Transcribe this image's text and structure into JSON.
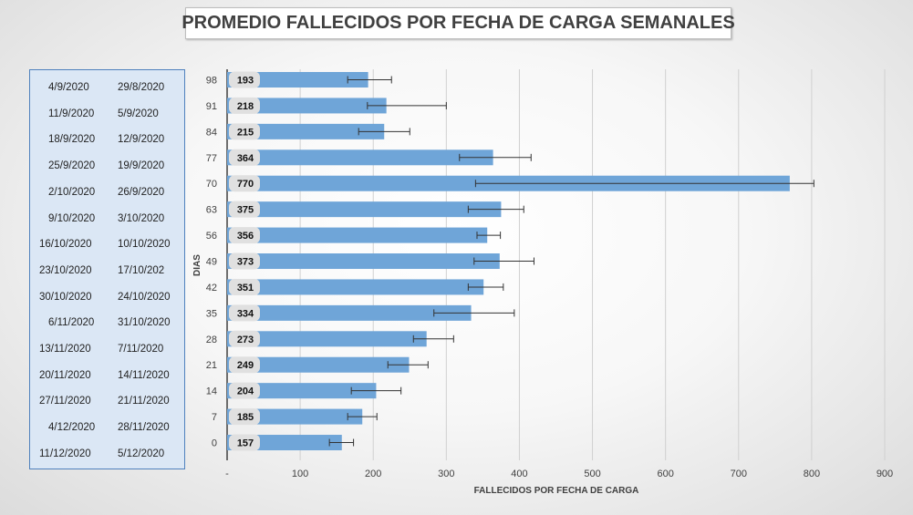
{
  "title": "PROMEDIO FALLECIDOS POR FECHA DE CARGA SEMANALES",
  "date_pairs": [
    [
      "4/9/2020",
      "29/8/2020"
    ],
    [
      "11/9/2020",
      "5/9/2020"
    ],
    [
      "18/9/2020",
      "12/9/2020"
    ],
    [
      "25/9/2020",
      "19/9/2020"
    ],
    [
      "2/10/2020",
      "26/9/2020"
    ],
    [
      "9/10/2020",
      "3/10/2020"
    ],
    [
      "16/10/2020",
      "10/10/2020"
    ],
    [
      "23/10/2020",
      "17/10/202"
    ],
    [
      "30/10/2020",
      "24/10/2020"
    ],
    [
      "6/11/2020",
      "31/10/2020"
    ],
    [
      "13/11/2020",
      "7/11/2020"
    ],
    [
      "20/11/2020",
      "14/11/2020"
    ],
    [
      "27/11/2020",
      "21/11/2020"
    ],
    [
      "4/12/2020",
      "28/11/2020"
    ],
    [
      "11/12/2020",
      "5/12/2020"
    ]
  ],
  "chart_data": {
    "type": "bar",
    "orientation": "horizontal",
    "title": "PROMEDIO FALLECIDOS POR FECHA DE CARGA SEMANALES",
    "xlabel": "FALLECIDOS POR FECHA DE CARGA",
    "ylabel": "DIAS",
    "categories": [
      "98",
      "91",
      "84",
      "77",
      "70",
      "63",
      "56",
      "49",
      "42",
      "35",
      "28",
      "21",
      "14",
      "7",
      "0"
    ],
    "values": [
      193,
      218,
      215,
      364,
      770,
      375,
      356,
      373,
      351,
      334,
      273,
      249,
      204,
      185,
      157
    ],
    "error_low": [
      165,
      192,
      180,
      318,
      340,
      330,
      342,
      338,
      330,
      283,
      255,
      220,
      170,
      165,
      140
    ],
    "error_high": [
      225,
      300,
      250,
      416,
      803,
      406,
      374,
      420,
      378,
      393,
      310,
      275,
      238,
      205,
      173
    ],
    "xlim": [
      0,
      900
    ],
    "xticks": [
      0,
      100,
      200,
      300,
      400,
      500,
      600,
      700,
      800,
      900
    ],
    "xtick_labels": [
      "-",
      "100",
      "200",
      "300",
      "400",
      "500",
      "600",
      "700",
      "800",
      "900"
    ],
    "grid": "vertical",
    "legend": "none",
    "colors": {
      "bar": "#6fa5d8",
      "value_label_bg": "#e0e0e0",
      "grid": "#d0d0d0",
      "error": "#333333"
    }
  }
}
